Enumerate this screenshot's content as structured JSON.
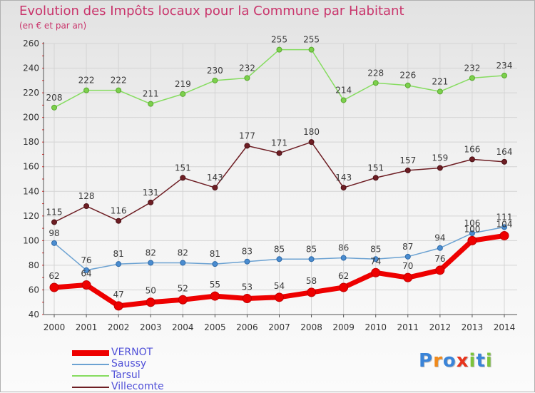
{
  "chart_data": {
    "type": "line",
    "title": "Evolution des Impôts locaux pour la Commune par Habitant",
    "subtitle": "(en € et par an)",
    "xlabel": "",
    "ylabel": "",
    "ylim": [
      40,
      260
    ],
    "yticks": [
      "40",
      "60",
      "80",
      "100",
      "120",
      "140",
      "160",
      "180",
      "200",
      "220",
      "240",
      "260"
    ],
    "categories": [
      "2000",
      "2001",
      "2002",
      "2003",
      "2004",
      "2005",
      "2006",
      "2007",
      "2008",
      "2009",
      "2010",
      "2011",
      "2012",
      "2013",
      "2014"
    ],
    "series": [
      {
        "name": "VERNOT",
        "color": "#ee0000",
        "values": [
          62,
          64,
          47,
          50,
          52,
          55,
          53,
          54,
          58,
          62,
          74,
          70,
          76,
          100,
          104
        ]
      },
      {
        "name": "Saussy",
        "color": "#6ca2d2",
        "values": [
          98,
          76,
          81,
          82,
          82,
          81,
          83,
          85,
          85,
          86,
          85,
          87,
          94,
          106,
          111
        ]
      },
      {
        "name": "Tarsul",
        "color": "#86dc60",
        "values": [
          208,
          222,
          222,
          211,
          219,
          230,
          232,
          255,
          255,
          214,
          228,
          226,
          221,
          232,
          234
        ]
      },
      {
        "name": "Villecomte",
        "color": "#6e1e24",
        "values": [
          115,
          128,
          116,
          131,
          151,
          143,
          177,
          171,
          180,
          143,
          151,
          157,
          159,
          166,
          164
        ]
      }
    ],
    "legend": "bottom-left"
  },
  "logo": {
    "letters": [
      "P",
      "r",
      "o",
      "x",
      "i",
      "t",
      "i"
    ],
    "colors": [
      "#3a84d8",
      "#f08a1c",
      "#3a84d8",
      "#e8341c",
      "#7cc43c",
      "#3a84d8",
      "#7cc43c"
    ]
  }
}
